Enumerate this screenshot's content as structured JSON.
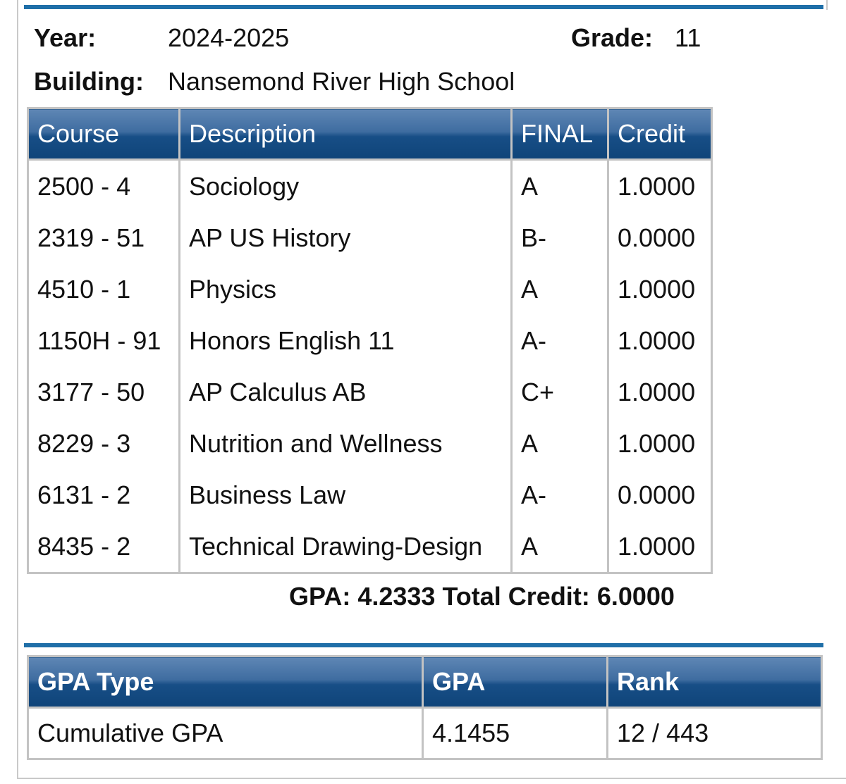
{
  "header": {
    "year_label": "Year:",
    "year_value": "2024-2025",
    "grade_label": "Grade:",
    "grade_value": "11",
    "building_label": "Building:",
    "building_value": "Nansemond River High School"
  },
  "courses_table": {
    "columns": [
      "Course",
      "Description",
      "FINAL",
      "Credit"
    ],
    "rows": [
      {
        "course": "2500 - 4",
        "description": "Sociology",
        "final": "A",
        "credit": "1.0000"
      },
      {
        "course": "2319 - 51",
        "description": "AP US History",
        "final": "B-",
        "credit": "0.0000"
      },
      {
        "course": "4510 - 1",
        "description": "Physics",
        "final": "A",
        "credit": "1.0000"
      },
      {
        "course": "1150H - 91",
        "description": "Honors English 11",
        "final": "A-",
        "credit": "1.0000"
      },
      {
        "course": "3177 - 50",
        "description": "AP Calculus AB",
        "final": "C+",
        "credit": "1.0000"
      },
      {
        "course": "8229 - 3",
        "description": "Nutrition and Wellness",
        "final": "A",
        "credit": "1.0000"
      },
      {
        "course": "6131 - 2",
        "description": "Business Law",
        "final": "A-",
        "credit": "0.0000"
      },
      {
        "course": "8435 - 2",
        "description": "Technical Drawing-Design",
        "final": "A",
        "credit": "1.0000"
      }
    ]
  },
  "totals": {
    "gpa_label": "GPA:",
    "gpa_value": "4.2333",
    "credit_label": "Total Credit:",
    "credit_value": "6.0000"
  },
  "gpa_table": {
    "columns": [
      "GPA Type",
      "GPA",
      "Rank"
    ],
    "rows": [
      {
        "type": "Cumulative GPA",
        "gpa": "4.1455",
        "rank": "12 / 443"
      }
    ]
  },
  "colors": {
    "header_blue": "#174e86",
    "rule_blue": "#1f6fa8",
    "border_gray": "#c3c3c3"
  }
}
